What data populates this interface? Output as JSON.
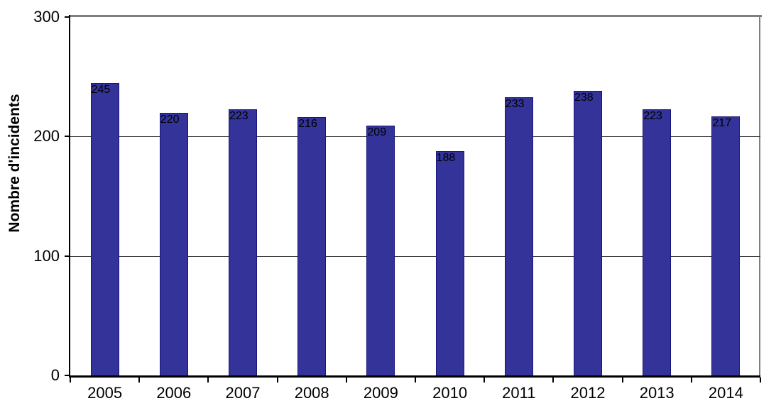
{
  "chart_data": {
    "type": "bar",
    "title": "",
    "xlabel": "",
    "ylabel": "Nombre d'incidents",
    "categories": [
      "2005",
      "2006",
      "2007",
      "2008",
      "2009",
      "2010",
      "2011",
      "2012",
      "2013",
      "2014"
    ],
    "values": [
      245,
      220,
      223,
      216,
      209,
      188,
      233,
      238,
      223,
      217
    ],
    "ylim": [
      0,
      300
    ],
    "yticks": [
      0,
      100,
      200,
      300
    ],
    "grid": true,
    "legend_position": "none",
    "colors": {
      "bar_fill": "#333399",
      "bar_border": "#16167a",
      "gridline": "#333333",
      "frame": "#7f7f7f",
      "axis": "#000000",
      "text": "#000000",
      "background": "#ffffff"
    }
  }
}
